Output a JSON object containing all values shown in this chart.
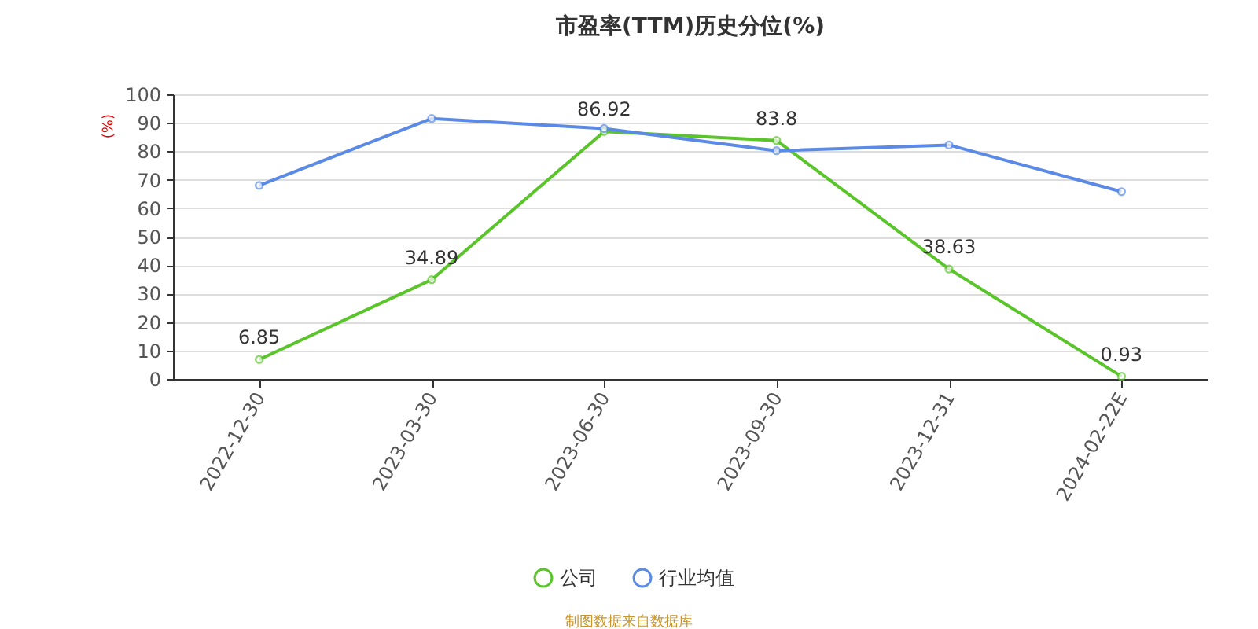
{
  "chart_data": {
    "type": "line",
    "title": "市盈率(TTM)历史分位(%)",
    "ylabel": "(%)",
    "categories": [
      "2022-12-30",
      "2023-03-30",
      "2023-06-30",
      "2023-09-30",
      "2023-12-31",
      "2024-02-22E"
    ],
    "series": [
      {
        "name": "公司",
        "color": "#5ac52a",
        "values": [
          6.85,
          34.89,
          86.92,
          83.8,
          38.63,
          0.93
        ],
        "value_labels": [
          "6.85",
          "34.89",
          "86.92",
          "83.8",
          "38.63",
          "0.93"
        ]
      },
      {
        "name": "行业均值",
        "color": "#5b8ae6",
        "values": [
          68,
          91.5,
          88,
          80.2,
          82.2,
          65.8
        ]
      }
    ],
    "ylim": [
      0,
      100
    ],
    "yticks": [
      0,
      10,
      20,
      30,
      40,
      50,
      60,
      70,
      80,
      90,
      100
    ],
    "grid": "y",
    "legend": "bottom",
    "marker": "circle",
    "annotations": [
      "制图数据来自数据库"
    ]
  }
}
